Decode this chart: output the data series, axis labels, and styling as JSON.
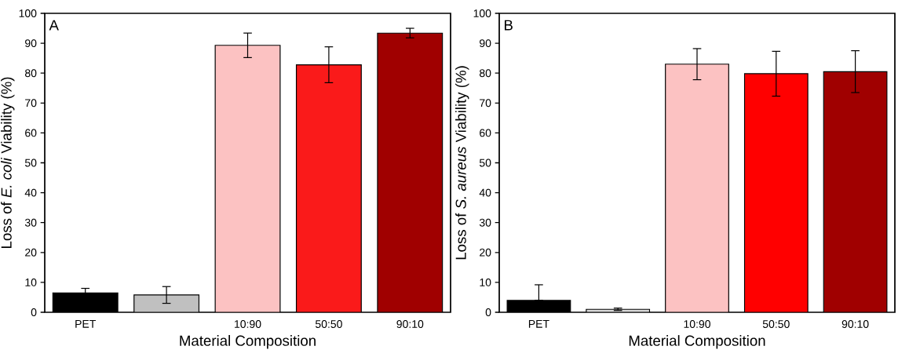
{
  "chart_data": [
    {
      "type": "bar",
      "title": "A",
      "xlabel": "Material Composition",
      "ylabel": "Loss of *E. coli* Viability (%)",
      "categories": [
        "PET",
        null,
        "10:90",
        "50:50",
        "90:10"
      ],
      "values": [
        6.5,
        5.8,
        89.3,
        82.8,
        93.4
      ],
      "colors": [
        "#000000",
        "#c0c0c0",
        "#fcc2c2",
        "#fa1a1a",
        "#a00000"
      ],
      "errors": [
        1.5,
        2.8,
        4.1,
        6.0,
        1.6
      ],
      "ylim": [
        0,
        100
      ],
      "yticks": [
        0,
        10,
        20,
        30,
        40,
        50,
        60,
        70,
        80,
        90,
        100
      ]
    },
    {
      "type": "bar",
      "title": "B",
      "xlabel": "Material Composition",
      "ylabel": "Loss of *S. aureus* Viability (%)",
      "categories": [
        "PET",
        null,
        "10:90",
        "50:50",
        "90:10"
      ],
      "values": [
        4.0,
        1.0,
        83.0,
        79.8,
        80.5
      ],
      "colors": [
        "#000000",
        "#d8d8d8",
        "#fcc2c2",
        "#ff0000",
        "#a00000"
      ],
      "errors": [
        [
          4.0,
          9.2
        ],
        0.4,
        5.2,
        7.5,
        7.0
      ],
      "ylim": [
        0,
        100
      ],
      "yticks": [
        0,
        10,
        20,
        30,
        40,
        50,
        60,
        70,
        80,
        90,
        100
      ]
    }
  ]
}
